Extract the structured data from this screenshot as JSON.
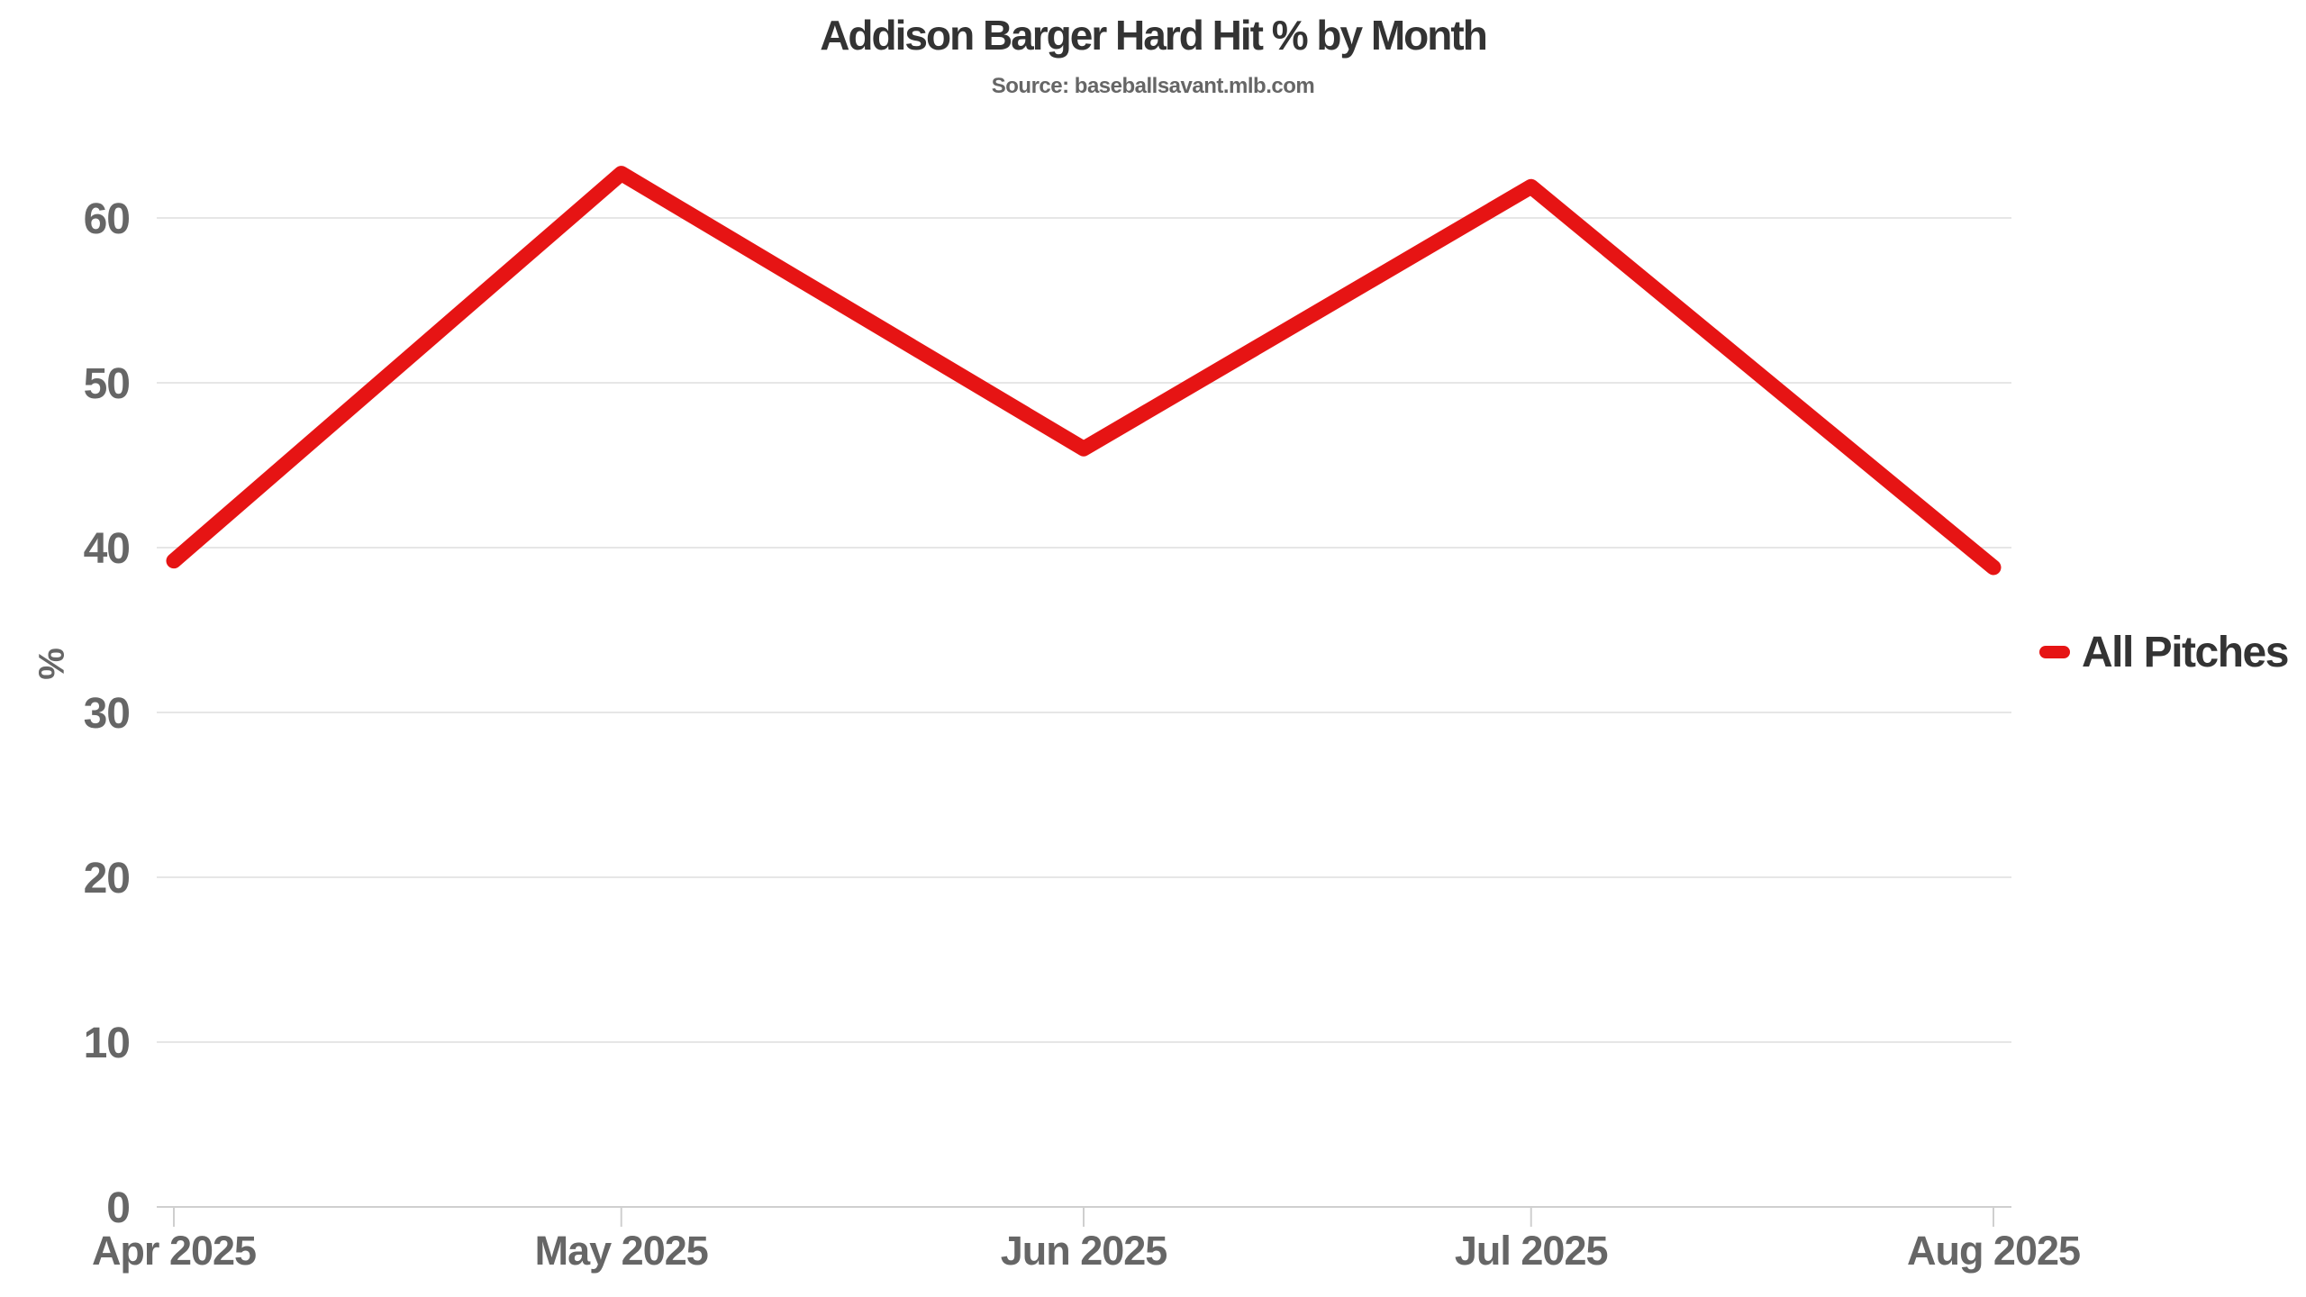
{
  "chart": {
    "title": "Addison Barger Hard Hit % by Month",
    "subtitle": "Source: baseballsavant.mlb.com",
    "ylabel": "%",
    "legend": "All Pitches"
  },
  "chart_data": {
    "type": "line",
    "title": "Addison Barger Hard Hit % by Month",
    "subtitle": "Source: baseballsavant.mlb.com",
    "categories": [
      "Apr 2025",
      "May 2025",
      "Jun 2025",
      "Jul 2025",
      "Aug 2025"
    ],
    "x_days": [
      0,
      30,
      61,
      91,
      122
    ],
    "series": [
      {
        "name": "All Pitches",
        "values": [
          39.2,
          62.7,
          46.0,
          61.9,
          38.8
        ]
      }
    ],
    "xlabel": "",
    "ylabel": "%",
    "yticks": [
      0,
      10,
      20,
      30,
      40,
      50,
      60
    ],
    "ylim": [
      0,
      65
    ],
    "grid": true,
    "legend_entries": [
      "All Pitches"
    ],
    "legend_position": "right-middle",
    "colors": {
      "line": "#e61414",
      "title": "#333333",
      "labels": "#666666",
      "grid": "#e6e6e6",
      "axis": "#cfcfcf"
    }
  }
}
